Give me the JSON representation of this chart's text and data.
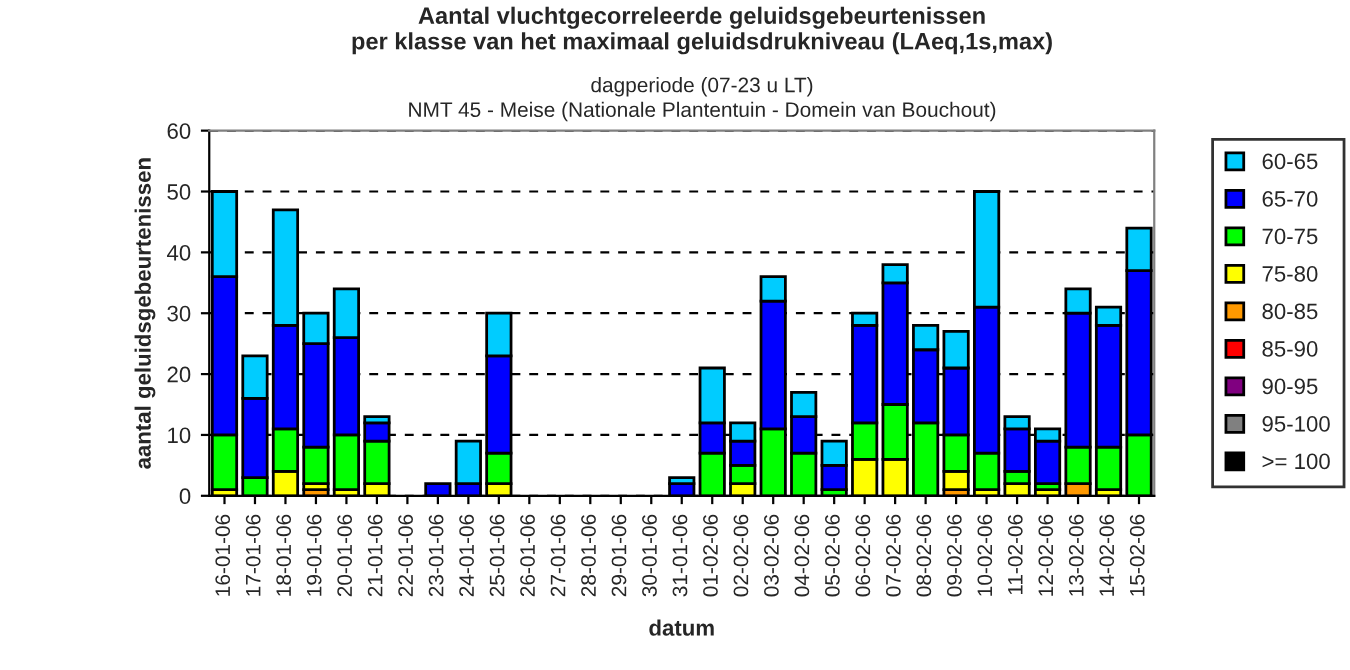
{
  "chart_data": {
    "type": "bar",
    "stacked": true,
    "title": "Aantal vluchtgecorreleerde geluidsgebeurtenissen\nper klasse van het maximaal geluidsdrukniveau (LAeq,1s,max)",
    "subtitle": "dagperiode (07-23 u LT)\nNMT 45 - Meise (Nationale Plantentuin - Domein van Bouchout)",
    "xlabel": "datum",
    "ylabel": "aantal geluidsgebeurtenissen",
    "categories": [
      "16-01-06",
      "17-01-06",
      "18-01-06",
      "19-01-06",
      "20-01-06",
      "21-01-06",
      "22-01-06",
      "23-01-06",
      "24-01-06",
      "25-01-06",
      "26-01-06",
      "27-01-06",
      "28-01-06",
      "29-01-06",
      "30-01-06",
      "31-01-06",
      "01-02-06",
      "02-02-06",
      "03-02-06",
      "04-02-06",
      "05-02-06",
      "06-02-06",
      "07-02-06",
      "08-02-06",
      "09-02-06",
      "10-02-06",
      "11-02-06",
      "12-02-06",
      "13-02-06",
      "14-02-06",
      "15-02-06"
    ],
    "series": [
      {
        "name": ">= 100",
        "color": "#000000",
        "values": [
          0,
          0,
          0,
          0,
          0,
          0,
          0,
          0,
          0,
          0,
          0,
          0,
          0,
          0,
          0,
          0,
          0,
          0,
          0,
          0,
          0,
          0,
          0,
          0,
          0,
          0,
          0,
          0,
          0,
          0,
          0
        ]
      },
      {
        "name": "95-100",
        "color": "#808080",
        "values": [
          0,
          0,
          0,
          0,
          0,
          0,
          0,
          0,
          0,
          0,
          0,
          0,
          0,
          0,
          0,
          0,
          0,
          0,
          0,
          0,
          0,
          0,
          0,
          0,
          0,
          0,
          0,
          0,
          0,
          0,
          0
        ]
      },
      {
        "name": "90-95",
        "color": "#800080",
        "values": [
          0,
          0,
          0,
          0,
          0,
          0,
          0,
          0,
          0,
          0,
          0,
          0,
          0,
          0,
          0,
          0,
          0,
          0,
          0,
          0,
          0,
          0,
          0,
          0,
          0,
          0,
          0,
          0,
          0,
          0,
          0
        ]
      },
      {
        "name": "85-90",
        "color": "#ff0000",
        "values": [
          0,
          0,
          0,
          0,
          0,
          0,
          0,
          0,
          0,
          0,
          0,
          0,
          0,
          0,
          0,
          0,
          0,
          0,
          0,
          0,
          0,
          0,
          0,
          0,
          0,
          0,
          0,
          0,
          0,
          0,
          0
        ]
      },
      {
        "name": "80-85",
        "color": "#ff9900",
        "values": [
          0,
          0,
          0,
          1,
          0,
          0,
          0,
          0,
          0,
          0,
          0,
          0,
          0,
          0,
          0,
          0,
          0,
          0,
          0,
          0,
          0,
          0,
          0,
          0,
          1,
          0,
          0,
          0,
          2,
          0,
          0
        ]
      },
      {
        "name": "75-80",
        "color": "#ffff00",
        "values": [
          1,
          0,
          4,
          1,
          1,
          2,
          0,
          0,
          0,
          2,
          0,
          0,
          0,
          0,
          0,
          0,
          0,
          2,
          0,
          0,
          0,
          6,
          6,
          0,
          3,
          1,
          2,
          1,
          0,
          1,
          0
        ]
      },
      {
        "name": "70-75",
        "color": "#00ff00",
        "values": [
          9,
          3,
          7,
          6,
          9,
          7,
          0,
          0,
          0,
          5,
          0,
          0,
          0,
          0,
          0,
          0,
          7,
          3,
          11,
          7,
          1,
          6,
          9,
          12,
          6,
          6,
          2,
          1,
          6,
          7,
          10
        ]
      },
      {
        "name": "65-70",
        "color": "#0000ff",
        "values": [
          26,
          13,
          17,
          17,
          16,
          3,
          0,
          2,
          2,
          16,
          0,
          0,
          0,
          0,
          0,
          2,
          5,
          4,
          21,
          6,
          4,
          16,
          20,
          12,
          11,
          24,
          7,
          7,
          22,
          20,
          27
        ]
      },
      {
        "name": "60-65",
        "color": "#00ccff",
        "values": [
          14,
          7,
          19,
          5,
          8,
          1,
          0,
          0,
          7,
          7,
          0,
          0,
          0,
          0,
          0,
          1,
          9,
          3,
          4,
          4,
          4,
          2,
          3,
          4,
          6,
          19,
          2,
          2,
          4,
          3,
          7
        ]
      }
    ],
    "ylim": [
      0,
      60
    ],
    "yticks": [
      0,
      10,
      20,
      30,
      40,
      50,
      60
    ],
    "grid": "y",
    "legend": "right"
  }
}
